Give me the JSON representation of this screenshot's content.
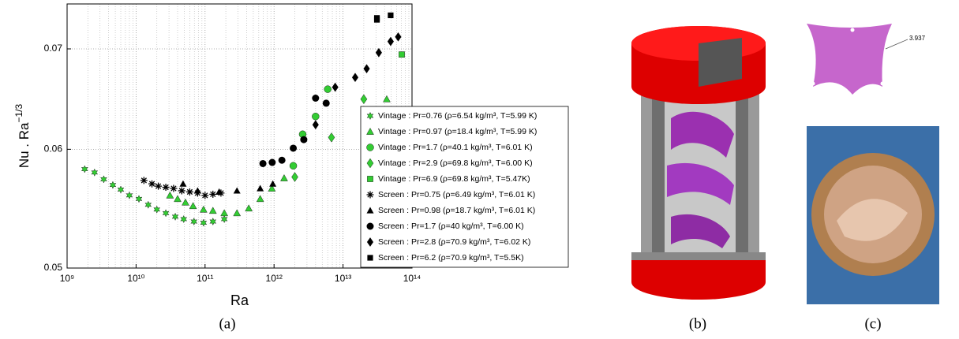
{
  "chart_data": {
    "type": "scatter",
    "x_label": "Ra",
    "y_label": "Nu . Ra",
    "y_label_sup": "−1/3",
    "xlog": true,
    "ylog": true,
    "grid": true,
    "xlim": [
      1000000000.0,
      100000000000000.0
    ],
    "ylim": [
      0.05,
      0.075
    ],
    "xticks": [
      {
        "value": 1000000000.0,
        "label": "10⁹"
      },
      {
        "value": 10000000000.0,
        "label": "10¹⁰"
      },
      {
        "value": 100000000000.0,
        "label": "10¹¹"
      },
      {
        "value": 1000000000000.0,
        "label": "10¹²"
      },
      {
        "value": 10000000000000.0,
        "label": "10¹³"
      },
      {
        "value": 100000000000000.0,
        "label": "10¹⁴"
      }
    ],
    "yticks": [
      {
        "value": 0.05,
        "label": "0.05"
      },
      {
        "value": 0.06,
        "label": "0.06"
      },
      {
        "value": 0.07,
        "label": "0.07"
      }
    ],
    "legend": "right",
    "series": [
      {
        "name": "Vintage : Pr=0.76 (ρ=6.54 kg/m³, T=5.99 K)",
        "color": "#33cc33",
        "marker": "star",
        "x": [
          1800000000.0,
          2500000000.0,
          3400000000.0,
          4600000000.0,
          6000000000.0,
          8000000000.0,
          11000000000.0,
          15000000000.0,
          20000000000.0,
          27000000000.0,
          37000000000.0,
          49000000000.0,
          69000000000.0,
          95000000000.0,
          130000000000.0,
          190000000000.0
        ],
        "values": [
          0.0582,
          0.0579,
          0.0573,
          0.0568,
          0.0564,
          0.0559,
          0.0556,
          0.0551,
          0.0547,
          0.0544,
          0.0541,
          0.0539,
          0.0537,
          0.0536,
          0.0537,
          0.0539
        ]
      },
      {
        "name": "Vintage : Pr=0.97 (ρ=18.4 kg/m³, T=5.99 K)",
        "color": "#33cc33",
        "marker": "triangle",
        "x": [
          31000000000.0,
          40000000000.0,
          52000000000.0,
          67000000000.0,
          95000000000.0,
          130000000000.0,
          190000000000.0,
          290000000000.0,
          430000000000.0,
          630000000000.0,
          930000000000.0,
          1400000000000.0,
          43000000000000.0
        ],
        "values": [
          0.0559,
          0.0556,
          0.0553,
          0.055,
          0.0547,
          0.0546,
          0.0544,
          0.0544,
          0.0548,
          0.0556,
          0.0565,
          0.0574,
          0.0648
        ]
      },
      {
        "name": "Vintage : Pr=1.7 (ρ=40.1 kg/m³, T=6.01 K)",
        "color": "#33cc33",
        "marker": "circle",
        "x": [
          1900000000000.0,
          2600000000000.0,
          4000000000000.0,
          6000000000000.0
        ],
        "values": [
          0.0585,
          0.0614,
          0.0631,
          0.0658
        ]
      },
      {
        "name": "Vintage : Pr=2.9 (ρ=69.8 kg/m³, T=6.00 K)",
        "color": "#33cc33",
        "marker": "diamond",
        "x": [
          2000000000000.0,
          6800000000000.0,
          20000000000000.0
        ],
        "values": [
          0.0575,
          0.0611,
          0.0648
        ]
      },
      {
        "name": "Vintage : Pr=6.9 (ρ=69.8 kg/m³, T=5.47K)",
        "color": "#33cc33",
        "marker": "square",
        "x": [
          71000000000000.0
        ],
        "values": [
          0.0694
        ]
      },
      {
        "name": "Screen : Pr=0.75 (ρ=6.49 kg/m³, T=6.01 K)",
        "color": "#000000",
        "marker": "asterisk",
        "x": [
          13000000000.0,
          17000000000.0,
          21000000000.0,
          27000000000.0,
          35000000000.0,
          46000000000.0,
          60000000000.0,
          78000000000.0,
          100000000000.0,
          130000000000.0,
          170000000000.0
        ],
        "values": [
          0.0572,
          0.0569,
          0.0567,
          0.0566,
          0.0565,
          0.0563,
          0.0562,
          0.0561,
          0.0559,
          0.056,
          0.0561
        ]
      },
      {
        "name": "Screen : Pr=0.98 (ρ=18.7 kg/m³, T=6.01 K)",
        "color": "#000000",
        "marker": "triangle",
        "x": [
          48000000000.0,
          78000000000.0,
          160000000000.0,
          290000000000.0,
          630000000000.0,
          960000000000.0
        ],
        "values": [
          0.0569,
          0.0563,
          0.0562,
          0.0563,
          0.0565,
          0.0569
        ]
      },
      {
        "name": "Screen : Pr=1.7 (ρ=40 kg/m³, T=6.00 K)",
        "color": "#000000",
        "marker": "circle",
        "x": [
          690000000000.0,
          940000000000.0,
          1300000000000.0,
          1900000000000.0,
          2700000000000.0,
          4000000000000.0,
          5700000000000.0
        ],
        "values": [
          0.0587,
          0.0588,
          0.059,
          0.0601,
          0.0609,
          0.0649,
          0.0644
        ]
      },
      {
        "name": "Screen : Pr=2.8 (ρ=70.9 kg/m³, T=6.02 K)",
        "color": "#000000",
        "marker": "diamond",
        "x": [
          4000000000000.0,
          7700000000000.0,
          15000000000000.0,
          22000000000000.0,
          33000000000000.0,
          49000000000000.0,
          63000000000000.0
        ],
        "values": [
          0.0623,
          0.066,
          0.067,
          0.0679,
          0.0696,
          0.0708,
          0.0713
        ]
      },
      {
        "name": "Screen : Pr=6.2 (ρ=70.9 kg/m³, T=5.5K)",
        "color": "#000000",
        "marker": "square",
        "x": [
          31000000000000.0,
          31000000000000.0,
          49000000000000.0
        ],
        "values": [
          0.0734,
          0.0732,
          0.0737
        ]
      }
    ]
  },
  "figure": {
    "captions": [
      "(a)",
      "(b)",
      "(c)"
    ],
    "dimension": "3.937"
  }
}
